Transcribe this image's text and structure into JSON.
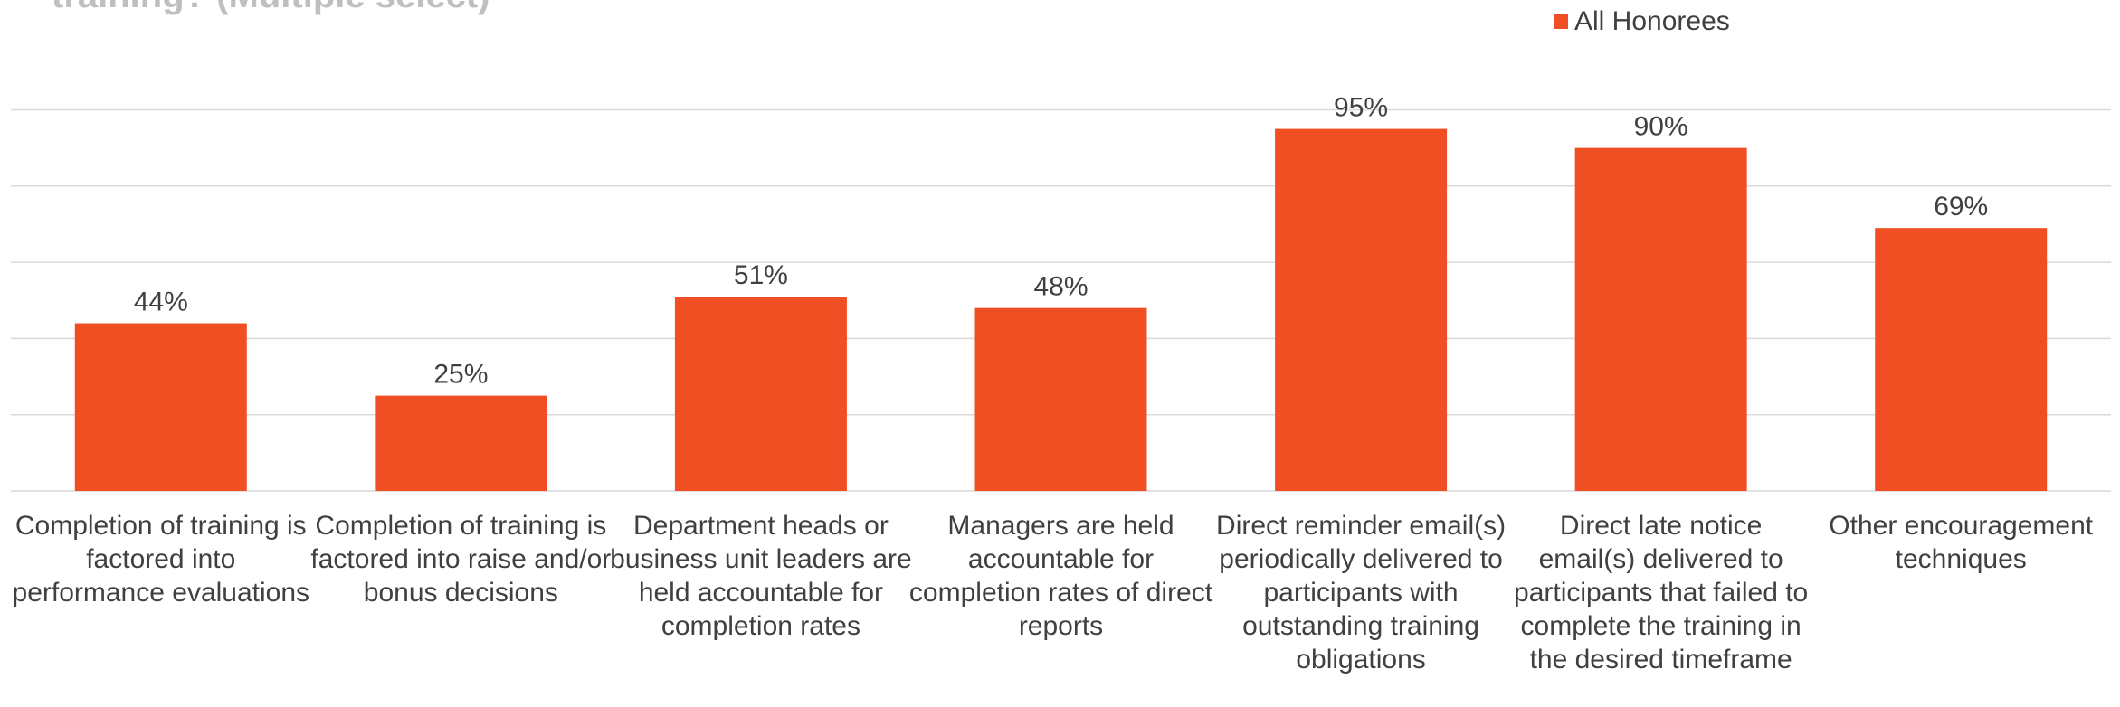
{
  "chart_data": {
    "type": "bar",
    "title": "training? (Multiple select)",
    "categories": [
      "Completion of training is factored into performance evaluations",
      "Completion of training is factored into raise and/or bonus decisions",
      "Department heads or business unit leaders are held accountable for completion rates",
      "Managers are held accountable for completion rates of direct reports",
      "Direct reminder email(s) periodically delivered to participants with outstanding training obligations",
      "Direct late notice email(s) delivered to participants that failed to complete the training in the desired timeframe",
      "Other encouragement techniques"
    ],
    "series": [
      {
        "name": "All Honorees",
        "color": "#f04f24",
        "values": [
          44,
          25,
          51,
          48,
          95,
          90,
          69
        ],
        "value_labels": [
          "44%",
          "25%",
          "51%",
          "48%",
          "95%",
          "90%",
          "69%"
        ]
      }
    ],
    "ylim": [
      0,
      100
    ],
    "yticks": [
      0,
      20,
      40,
      60,
      80,
      100
    ],
    "grid": true,
    "legend": "top-right"
  }
}
